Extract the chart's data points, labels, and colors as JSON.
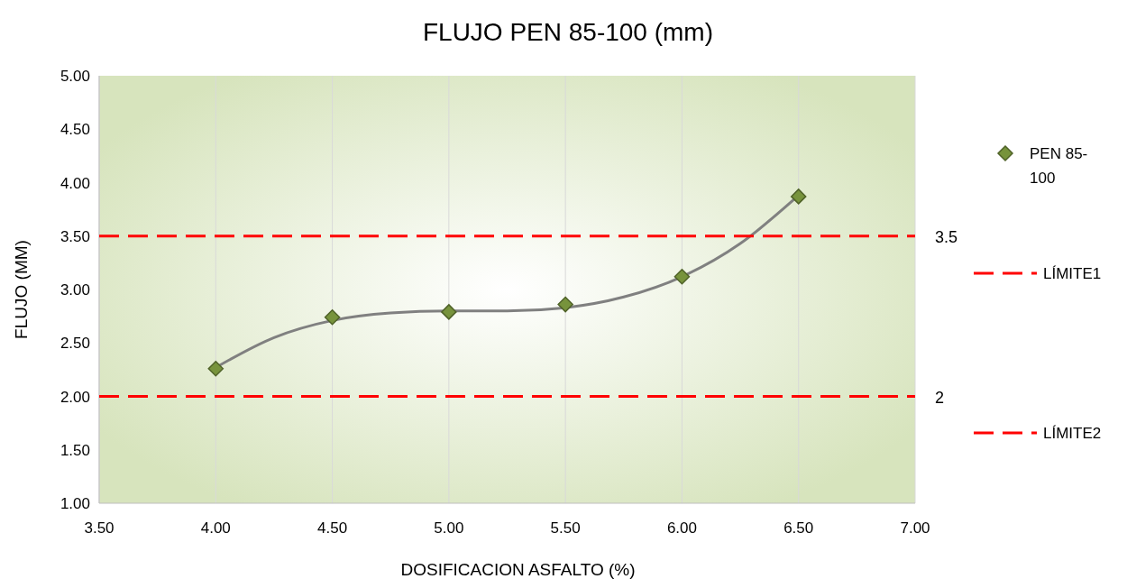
{
  "chart_data": {
    "type": "scatter",
    "title": "FLUJO PEN 85-100 (mm)",
    "xlabel": "DOSIFICACION  ASFALTO (%)",
    "ylabel": "FLUJO (MM)",
    "xlim": [
      3.5,
      7.0
    ],
    "xticks": [
      {
        "value": 3.5,
        "label": "3.50"
      },
      {
        "value": 4,
        "label": "4.00"
      },
      {
        "value": 4.5,
        "label": "4.50"
      },
      {
        "value": 5,
        "label": "5.00"
      },
      {
        "value": 5.5,
        "label": "5.50"
      },
      {
        "value": 6,
        "label": "6.00"
      },
      {
        "value": 6.5,
        "label": "6.50"
      },
      {
        "value": 7,
        "label": "7.00"
      }
    ],
    "ylim": [
      1.0,
      5.0
    ],
    "yticks": [
      {
        "value": 1,
        "label": "1.00"
      },
      {
        "value": 1.5,
        "label": "1.50"
      },
      {
        "value": 2,
        "label": "2.00"
      },
      {
        "value": 2.5,
        "label": "2.50"
      },
      {
        "value": 3,
        "label": "3.00"
      },
      {
        "value": 3.5,
        "label": "3.50"
      },
      {
        "value": 4,
        "label": "4.00"
      },
      {
        "value": 4.5,
        "label": "4.50"
      },
      {
        "value": 5,
        "label": "5.00"
      }
    ],
    "grid": "x",
    "legend": "right",
    "series": [
      {
        "type": "line",
        "color": "#808080",
        "x": [
          4.0,
          4.25,
          4.5,
          4.75,
          5.0,
          5.25,
          5.5,
          5.75,
          6.0,
          6.25,
          6.5
        ],
        "values": [
          2.27,
          2.55,
          2.71,
          2.78,
          2.8,
          2.8,
          2.83,
          2.93,
          3.12,
          3.43,
          3.88
        ],
        "marker": "none",
        "line_style": "solid"
      },
      {
        "name": "PEN 85-100",
        "color": "#77933c",
        "x": [
          4.0,
          4.5,
          5.0,
          5.5,
          6.0,
          6.5
        ],
        "values": [
          2.26,
          2.74,
          2.79,
          2.86,
          3.12,
          3.87
        ],
        "marker": "diamond"
      },
      {
        "type": "line",
        "name": "LÍMITE1",
        "color": "#ff0000",
        "x": [
          3.5,
          7.0
        ],
        "values": [
          3.5,
          3.5
        ],
        "line_style": "dashed",
        "marker": "none",
        "value_labels": [
          null,
          "3.5"
        ]
      },
      {
        "type": "line",
        "name": "LÍMITE2",
        "color": "#ff0000",
        "x": [
          3.5,
          7.0
        ],
        "values": [
          2,
          2
        ],
        "line_style": "dashed",
        "marker": "none",
        "value_labels": [
          null,
          "2"
        ]
      }
    ]
  }
}
